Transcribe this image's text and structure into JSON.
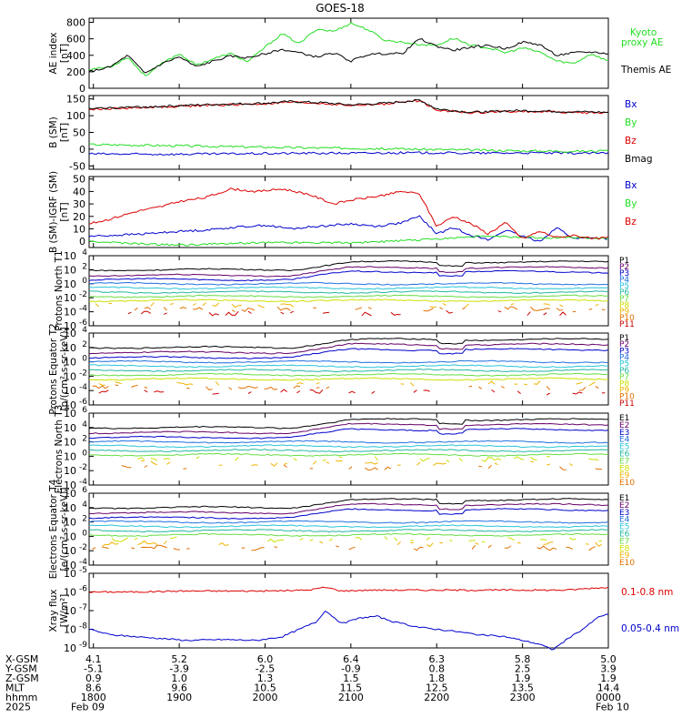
{
  "title": "GOES-18",
  "colors": {
    "black": "#000000",
    "green": "#22dd22",
    "blue": "#0000cc",
    "red": "#dd0000",
    "P1": "#000000",
    "P2": "#660066",
    "P3": "#0000cc",
    "P4": "#1f6fe0",
    "P5": "#29c4d8",
    "P6": "#22b8a0",
    "P7": "#66dd44",
    "P8": "#cce000",
    "P9": "#f0b400",
    "P10": "#e07000",
    "P11": "#cc0000"
  },
  "time_axis": {
    "tick_labels": [
      "1800",
      "1900",
      "2000",
      "2100",
      "2200",
      "2300",
      "0000"
    ],
    "x_hours": [
      18,
      19,
      20,
      21,
      22,
      23,
      24
    ],
    "xlim_hours": [
      17.95,
      24.0
    ]
  },
  "ephemeris": {
    "rows": [
      {
        "label": "X-GSM",
        "values": [
          "4.1",
          "5.2",
          "6.0",
          "6.4",
          "6.3",
          "5.8",
          "5.0"
        ]
      },
      {
        "label": "Y-GSM",
        "values": [
          "-5.1",
          "-3.9",
          "-2.5",
          "-0.9",
          "0.8",
          "2.5",
          "3.9"
        ]
      },
      {
        "label": "Z-GSM",
        "values": [
          "0.9",
          "1.0",
          "1.3",
          "1.5",
          "1.8",
          "1.9",
          "1.9"
        ]
      },
      {
        "label": "MLT",
        "values": [
          "8.6",
          "9.6",
          "10.5",
          "11.5",
          "12.5",
          "13.5",
          "14.4"
        ]
      },
      {
        "label": "hhmm",
        "values": [
          "1800",
          "1900",
          "2000",
          "2100",
          "2200",
          "2300",
          "0000"
        ]
      },
      {
        "label": "2025",
        "values": [
          "Feb 09",
          "",
          "",
          "",
          "",
          "",
          "Feb 10"
        ]
      }
    ]
  },
  "chart_data": [
    {
      "type": "line",
      "id": "ae",
      "ylabel": "AE index [nT]",
      "ylim": [
        0,
        850
      ],
      "yticks": [
        0,
        200,
        400,
        600,
        800
      ],
      "series": [
        {
          "name": "Kyoto proxy AE",
          "color": "#22dd22",
          "x": [
            17.95,
            18.2,
            18.4,
            18.6,
            18.8,
            19.0,
            19.2,
            19.4,
            19.6,
            19.8,
            20.0,
            20.2,
            20.4,
            20.6,
            20.8,
            21.0,
            21.2,
            21.4,
            21.6,
            21.8,
            22.0,
            22.2,
            22.4,
            22.6,
            22.8,
            23.0,
            23.2,
            23.4,
            23.6,
            23.8,
            24.0
          ],
          "values": [
            230,
            260,
            380,
            150,
            300,
            420,
            280,
            360,
            420,
            320,
            500,
            660,
            540,
            720,
            690,
            790,
            710,
            580,
            560,
            530,
            520,
            610,
            520,
            490,
            430,
            490,
            440,
            330,
            300,
            420,
            330
          ]
        },
        {
          "name": "Themis AE",
          "color": "#000000",
          "x": [
            17.95,
            18.2,
            18.4,
            18.6,
            18.8,
            19.0,
            19.2,
            19.4,
            19.6,
            19.8,
            20.0,
            20.2,
            20.4,
            20.6,
            20.8,
            21.0,
            21.2,
            21.4,
            21.6,
            21.8,
            22.0,
            22.2,
            22.4,
            22.6,
            22.8,
            23.0,
            23.2,
            23.4,
            23.6,
            23.8,
            24.0
          ],
          "values": [
            200,
            260,
            400,
            180,
            300,
            380,
            260,
            330,
            390,
            370,
            420,
            470,
            430,
            380,
            430,
            330,
            410,
            420,
            420,
            600,
            510,
            460,
            500,
            520,
            480,
            560,
            530,
            400,
            430,
            440,
            420
          ]
        }
      ]
    },
    {
      "type": "line",
      "id": "bsm",
      "ylabel": "B (SM) [nT]",
      "ylim": [
        -60,
        160
      ],
      "yticks": [
        -50,
        0,
        50,
        100,
        150
      ],
      "series": [
        {
          "name": "Bx",
          "color": "#0000cc",
          "x": [
            17.95,
            18.5,
            19.0,
            19.5,
            20.0,
            20.5,
            21.0,
            21.5,
            22.0,
            22.5,
            23.0,
            23.5,
            24.0
          ],
          "values": [
            -14,
            -15,
            -15,
            -14,
            -13,
            -12,
            -12,
            -11,
            -11,
            -12,
            -11,
            -12,
            -12
          ]
        },
        {
          "name": "By",
          "color": "#22dd22",
          "x": [
            17.95,
            18.5,
            19.0,
            19.5,
            20.0,
            20.5,
            21.0,
            21.5,
            22.0,
            22.5,
            23.0,
            23.5,
            24.0
          ],
          "values": [
            14,
            12,
            10,
            8,
            6,
            4,
            3,
            1,
            -1,
            -3,
            -5,
            -6,
            -6
          ]
        },
        {
          "name": "Bz",
          "color": "#dd0000",
          "x": [
            17.95,
            18.3,
            18.7,
            19.0,
            19.5,
            20.0,
            20.3,
            20.7,
            21.0,
            21.4,
            21.8,
            22.0,
            22.4,
            22.8,
            23.0,
            23.5,
            24.0
          ],
          "values": [
            118,
            122,
            125,
            128,
            132,
            135,
            140,
            136,
            130,
            135,
            145,
            118,
            108,
            112,
            113,
            110,
            108
          ]
        },
        {
          "name": "Bmag",
          "color": "#000000",
          "x": [
            17.95,
            18.3,
            18.7,
            19.0,
            19.5,
            20.0,
            20.3,
            20.7,
            21.0,
            21.4,
            21.8,
            22.0,
            22.4,
            22.8,
            23.0,
            23.5,
            24.0
          ],
          "values": [
            120,
            124,
            127,
            130,
            134,
            137,
            142,
            138,
            132,
            137,
            147,
            120,
            110,
            114,
            115,
            112,
            110
          ]
        }
      ]
    },
    {
      "type": "line",
      "id": "bigrf",
      "ylabel": "B (SM)-IGRF (SM) [nT]",
      "ylim": [
        -5,
        52
      ],
      "yticks": [
        0,
        10,
        20,
        30,
        40,
        50
      ],
      "series": [
        {
          "name": "Bx",
          "color": "#0000cc",
          "x": [
            17.95,
            18.3,
            18.6,
            19.0,
            19.3,
            19.6,
            20.0,
            20.3,
            20.6,
            21.0,
            21.3,
            21.6,
            21.8,
            22.0,
            22.2,
            22.4,
            22.6,
            22.8,
            23.0,
            23.2,
            23.4,
            23.6,
            23.8,
            24.0
          ],
          "values": [
            4,
            5,
            6,
            8,
            9,
            11,
            13,
            10,
            12,
            14,
            12,
            15,
            20,
            6,
            11,
            5,
            1,
            9,
            4,
            0,
            11,
            2,
            3,
            2
          ]
        },
        {
          "name": "By",
          "color": "#22dd22",
          "x": [
            17.95,
            18.5,
            19.0,
            19.5,
            20.0,
            20.5,
            21.0,
            21.5,
            22.0,
            22.5,
            23.0,
            23.5,
            24.0
          ],
          "values": [
            0,
            -2,
            -3,
            -2,
            -1,
            -1,
            -1,
            0,
            2,
            4,
            3,
            3,
            2
          ]
        },
        {
          "name": "Bz",
          "color": "#dd0000",
          "x": [
            17.95,
            18.2,
            18.5,
            18.8,
            19.0,
            19.3,
            19.6,
            19.9,
            20.2,
            20.5,
            20.8,
            21.0,
            21.3,
            21.6,
            21.8,
            22.0,
            22.2,
            22.4,
            22.6,
            22.8,
            23.0,
            23.2,
            23.4,
            23.6,
            23.8,
            24.0
          ],
          "values": [
            14,
            18,
            24,
            28,
            32,
            35,
            42,
            40,
            42,
            38,
            30,
            33,
            36,
            40,
            38,
            12,
            20,
            14,
            6,
            15,
            2,
            8,
            3,
            5,
            2,
            3
          ]
        }
      ]
    },
    {
      "type": "line",
      "id": "protons_north",
      "scale": "log",
      "ylabel": "Protons North T1",
      "ylim_exp": [
        -6,
        4
      ],
      "ytick_exps": [
        -6,
        -4,
        -2,
        0,
        2,
        4
      ],
      "channels": [
        "P1",
        "P2",
        "P3",
        "P4",
        "P5",
        "P6",
        "P7",
        "P8",
        "P9",
        "P10",
        "P11"
      ],
      "base_log": [
        2.0,
        1.2,
        0.6,
        0.0,
        -0.6,
        -1.2,
        -1.8,
        -2.4,
        -3.0,
        -3.6,
        -4.2
      ]
    },
    {
      "type": "line",
      "id": "protons_equator",
      "scale": "log",
      "ylabel": "Protons Equator T2 [p/(cm²-s-sr-keV)]",
      "ylim_exp": [
        -6,
        4
      ],
      "ytick_exps": [
        -6,
        -4,
        -2,
        0,
        2,
        4
      ],
      "channels": [
        "P1",
        "P2",
        "P3",
        "P4",
        "P5",
        "P6",
        "P7",
        "P8",
        "P9",
        "P10",
        "P11"
      ],
      "base_log": [
        2.0,
        1.3,
        0.6,
        0.0,
        -0.6,
        -1.2,
        -1.8,
        -2.4,
        -3.0,
        -3.6,
        -4.2
      ]
    },
    {
      "type": "line",
      "id": "electrons_north",
      "scale": "log",
      "ylabel": "Electrons North T3",
      "ylim_exp": [
        -4,
        6
      ],
      "ytick_exps": [
        -4,
        -2,
        0,
        2,
        4,
        6
      ],
      "channels": [
        "E1",
        "E2",
        "E3",
        "E4",
        "E5",
        "E6",
        "E7",
        "E8",
        "E9",
        "E10"
      ],
      "base_log": [
        4.0,
        3.3,
        2.6,
        2.0,
        1.4,
        0.8,
        0.2,
        -0.4,
        -1.0,
        -1.6
      ]
    },
    {
      "type": "line",
      "id": "electrons_equator",
      "scale": "log",
      "ylabel": "Electrons Equator T4 [e/(cm²-s-sr-keV)]",
      "ylim_exp": [
        -4,
        6
      ],
      "ytick_exps": [
        -4,
        -2,
        0,
        2,
        4,
        6
      ],
      "channels": [
        "E1",
        "E2",
        "E3",
        "E4",
        "E5",
        "E6",
        "E7",
        "E8",
        "E9",
        "E10"
      ],
      "base_log": [
        4.0,
        3.3,
        2.6,
        2.0,
        1.4,
        0.8,
        0.2,
        -0.4,
        -1.0,
        -1.6
      ]
    },
    {
      "type": "line",
      "id": "xray",
      "scale": "log",
      "ylabel": "Xray flux [W/m²]",
      "ylim_exp": [
        -9,
        -5
      ],
      "ytick_exps": [
        -9,
        -8,
        -7,
        -6,
        -5
      ],
      "series": [
        {
          "name": "0.1-0.8 nm",
          "color": "#dd0000",
          "x": [
            17.95,
            18.5,
            19.0,
            19.5,
            20.0,
            20.5,
            20.7,
            20.9,
            21.2,
            21.6,
            22.0,
            22.5,
            23.0,
            23.5,
            23.8,
            24.0
          ],
          "values": [
            -6.0,
            -6.0,
            -5.95,
            -5.95,
            -5.95,
            -5.9,
            -5.75,
            -5.95,
            -5.9,
            -5.9,
            -5.9,
            -5.9,
            -5.9,
            -5.9,
            -5.8,
            -5.75
          ]
        },
        {
          "name": "0.05-0.4 nm",
          "color": "#0000cc",
          "x": [
            17.95,
            18.2,
            18.5,
            18.8,
            19.1,
            19.5,
            19.9,
            20.2,
            20.4,
            20.6,
            20.7,
            20.9,
            21.1,
            21.3,
            21.5,
            21.8,
            22.0,
            22.2,
            22.5,
            22.8,
            23.0,
            23.2,
            23.35,
            23.5,
            23.7,
            23.9,
            24.0
          ],
          "values": [
            -8.0,
            -8.3,
            -8.4,
            -8.5,
            -8.6,
            -8.55,
            -8.6,
            -8.4,
            -8.0,
            -7.6,
            -7.0,
            -7.7,
            -7.4,
            -7.3,
            -7.6,
            -7.9,
            -8.0,
            -8.1,
            -8.3,
            -8.4,
            -8.6,
            -8.8,
            -9.1,
            -8.6,
            -8.0,
            -7.3,
            -7.2
          ]
        }
      ]
    }
  ],
  "legends": {
    "ae": [
      "Kyoto proxy AE",
      "Themis AE"
    ],
    "bsm": [
      "Bx",
      "By",
      "Bz",
      "Bmag"
    ],
    "bigrf": [
      "Bx",
      "By",
      "Bz"
    ],
    "xray": [
      "0.1-0.8 nm",
      "0.05-0.4 nm"
    ]
  }
}
